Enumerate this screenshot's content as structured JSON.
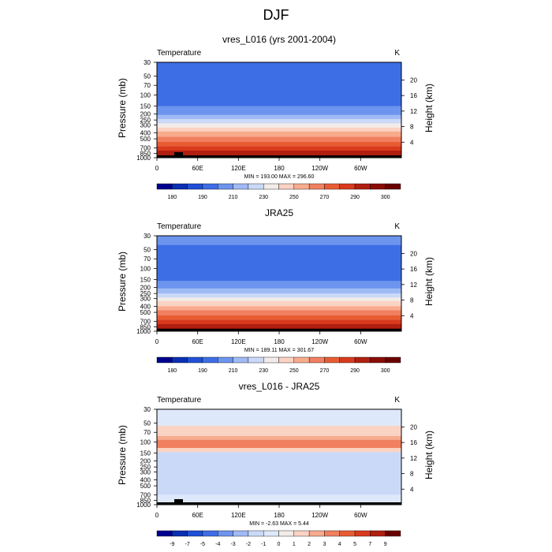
{
  "figure_title": "DJF",
  "chart_data": [
    {
      "type": "heatmap",
      "title": "vres_L016 (yrs 2001-2004)",
      "left_label": "Temperature",
      "right_label": "K",
      "ylabel": "Pressure (mb)",
      "y2label": "Height (km)",
      "x_ticks": [
        "0",
        "60E",
        "120E",
        "180",
        "120W",
        "60W"
      ],
      "y_ticks": [
        "30",
        "50",
        "70",
        "100",
        "150",
        "200",
        "250",
        "300",
        "400",
        "500",
        "700",
        "850",
        "1000"
      ],
      "y2_ticks": [
        "20",
        "16",
        "12",
        "8",
        "4"
      ],
      "stats": "MIN = 193.00  MAX = 296.60",
      "colorbar": {
        "levels": [
          "180",
          "190",
          "210",
          "230",
          "250",
          "270",
          "290",
          "300"
        ],
        "colors": [
          "#00008f",
          "#0a2fb3",
          "#1f50d6",
          "#3d6ee6",
          "#6d94ee",
          "#9fbaf4",
          "#cad9f8",
          "#f2ece8",
          "#fbd3c3",
          "#f8ab8d",
          "#f08060",
          "#e85c34",
          "#d83a1e",
          "#b01f10",
          "#8a0d05",
          "#6a0000"
        ]
      },
      "levels_by_pressure": [
        {
          "p": 30,
          "t": 208
        },
        {
          "p": 50,
          "t": 206
        },
        {
          "p": 70,
          "t": 204
        },
        {
          "p": 100,
          "t": 203
        },
        {
          "p": 150,
          "t": 208
        },
        {
          "p": 200,
          "t": 215
        },
        {
          "p": 250,
          "t": 225
        },
        {
          "p": 300,
          "t": 235
        },
        {
          "p": 400,
          "t": 250
        },
        {
          "p": 500,
          "t": 260
        },
        {
          "p": 700,
          "t": 275
        },
        {
          "p": 850,
          "t": 284
        },
        {
          "p": 1000,
          "t": 293
        }
      ]
    },
    {
      "type": "heatmap",
      "title": "JRA25",
      "left_label": "Temperature",
      "right_label": "K",
      "ylabel": "Pressure (mb)",
      "y2label": "Height (km)",
      "x_ticks": [
        "0",
        "60E",
        "120E",
        "180",
        "120W",
        "60W"
      ],
      "y_ticks": [
        "30",
        "50",
        "70",
        "100",
        "150",
        "200",
        "250",
        "300",
        "400",
        "500",
        "700",
        "850",
        "1000"
      ],
      "y2_ticks": [
        "20",
        "16",
        "12",
        "8",
        "4"
      ],
      "stats": "MIN = 189.11  MAX = 301.67",
      "colorbar": {
        "levels": [
          "180",
          "190",
          "210",
          "230",
          "250",
          "270",
          "290",
          "300"
        ],
        "colors": [
          "#00008f",
          "#0a2fb3",
          "#1f50d6",
          "#3d6ee6",
          "#6d94ee",
          "#9fbaf4",
          "#cad9f8",
          "#f2ece8",
          "#fbd3c3",
          "#f8ab8d",
          "#f08060",
          "#e85c34",
          "#d83a1e",
          "#b01f10",
          "#8a0d05",
          "#6a0000"
        ]
      },
      "levels_by_pressure": [
        {
          "p": 30,
          "t": 210
        },
        {
          "p": 50,
          "t": 207
        },
        {
          "p": 70,
          "t": 203
        },
        {
          "p": 100,
          "t": 200
        },
        {
          "p": 150,
          "t": 207
        },
        {
          "p": 200,
          "t": 214
        },
        {
          "p": 250,
          "t": 224
        },
        {
          "p": 300,
          "t": 234
        },
        {
          "p": 400,
          "t": 249
        },
        {
          "p": 500,
          "t": 259
        },
        {
          "p": 700,
          "t": 275
        },
        {
          "p": 850,
          "t": 285
        },
        {
          "p": 1000,
          "t": 295
        }
      ]
    },
    {
      "type": "heatmap",
      "title": "vres_L016 - JRA25",
      "left_label": "Temperature",
      "right_label": "K",
      "ylabel": "Pressure (mb)",
      "y2label": "Height (km)",
      "x_ticks": [
        "0",
        "60E",
        "120E",
        "180",
        "120W",
        "60W"
      ],
      "y_ticks": [
        "30",
        "50",
        "70",
        "100",
        "150",
        "200",
        "250",
        "300",
        "400",
        "500",
        "700",
        "850",
        "1000"
      ],
      "y2_ticks": [
        "20",
        "16",
        "12",
        "8",
        "4"
      ],
      "stats": "MIN =  -2.63  MAX =   5.44",
      "colorbar": {
        "levels": [
          "-9",
          "-7",
          "-5",
          "-4",
          "-3",
          "-2",
          "-1",
          "0",
          "1",
          "2",
          "3",
          "4",
          "5",
          "7",
          "9"
        ],
        "colors": [
          "#00008f",
          "#0a2fb3",
          "#1f50d6",
          "#3d6ee6",
          "#6d94ee",
          "#9fbaf4",
          "#cad9f8",
          "#dde8fa",
          "#f2ece8",
          "#fbd3c3",
          "#f8ab8d",
          "#f08060",
          "#e85c34",
          "#d83a1e",
          "#b01f10",
          "#6a0000"
        ]
      },
      "bands": [
        {
          "p_top": 30,
          "p_bottom": 55,
          "color": "#dde8fa"
        },
        {
          "p_top": 55,
          "p_bottom": 80,
          "color": "#fbd3c3"
        },
        {
          "p_top": 80,
          "p_bottom": 92,
          "color": "#f8ab8d"
        },
        {
          "p_top": 92,
          "p_bottom": 125,
          "color": "#f08060"
        },
        {
          "p_top": 125,
          "p_bottom": 145,
          "color": "#fbd3c3"
        },
        {
          "p_top": 145,
          "p_bottom": 700,
          "color": "#cad9f8"
        },
        {
          "p_top": 700,
          "p_bottom": 1000,
          "color": "#dde8fa"
        }
      ]
    }
  ]
}
